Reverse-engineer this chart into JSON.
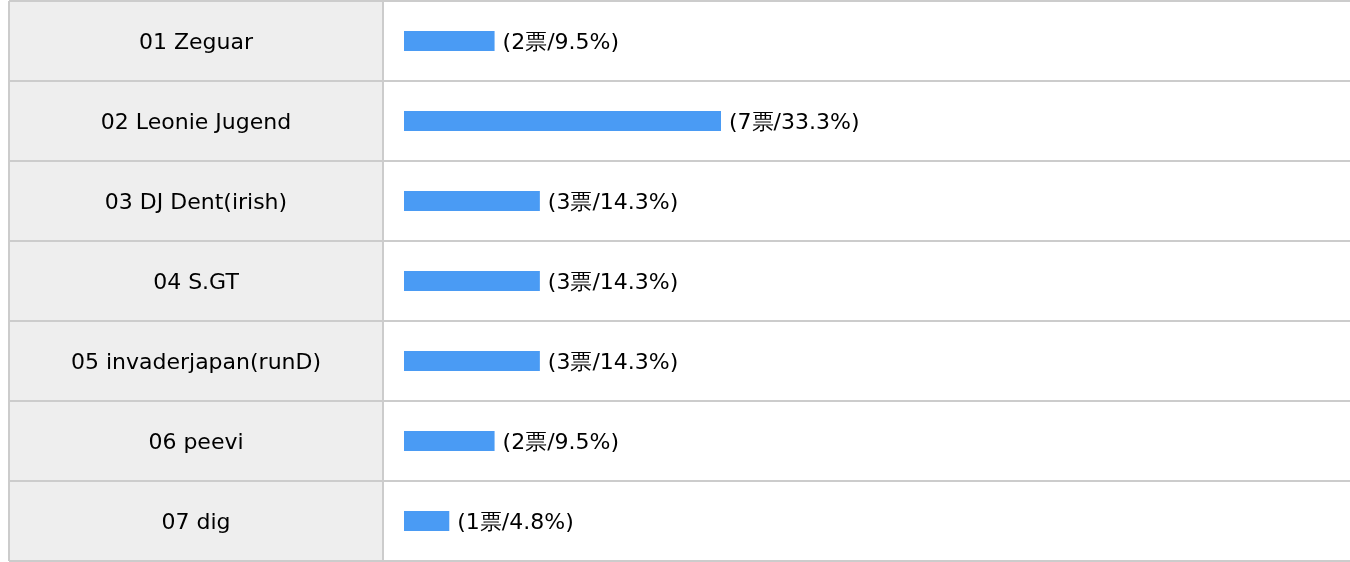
{
  "chart_data": {
    "type": "bar",
    "orientation": "horizontal",
    "categories": [
      "01 Zeguar",
      "02 Leonie Jugend",
      "03 DJ Dent(irish)",
      "04 S.GT",
      "05 invaderjapan(runD)",
      "06 peevi",
      "07 dig"
    ],
    "values": [
      2,
      7,
      3,
      3,
      3,
      2,
      1
    ],
    "value_labels": [
      "(2票/9.5%)",
      "(7票/33.3%)",
      "(3票/14.3%)",
      "(3票/14.3%)",
      "(3票/14.3%)",
      "(2票/9.5%)",
      "(1票/4.8%)"
    ],
    "color": "#4a9bf4"
  }
}
